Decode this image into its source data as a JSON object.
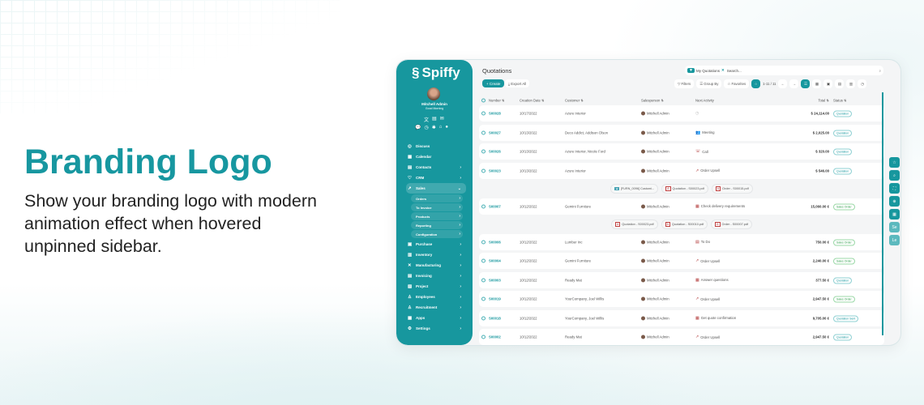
{
  "hero": {
    "title": "Branding Logo",
    "description": "Show your branding logo with modern animation effect when hovered unpinned sidebar."
  },
  "colors": {
    "accent": "#17979e",
    "sales_order": "#2f9e4b"
  },
  "sidebar": {
    "logo": "Spiffy",
    "user": {
      "name": "Mitchell Admin",
      "greeting": "Good Morning"
    },
    "items": [
      {
        "label": "Discuss",
        "icon": "chat-icon"
      },
      {
        "label": "Calendar",
        "icon": "calendar-icon"
      },
      {
        "label": "Contacts",
        "icon": "contacts-icon",
        "chevron": true
      },
      {
        "label": "CRM",
        "icon": "crm-icon",
        "chevron": true
      },
      {
        "label": "Sales",
        "icon": "sales-icon",
        "chevron": true,
        "active": true
      },
      {
        "label": "Orders",
        "sub": true
      },
      {
        "label": "To Invoice",
        "sub": true
      },
      {
        "label": "Products",
        "sub": true
      },
      {
        "label": "Reporting",
        "sub": true
      },
      {
        "label": "Configuration",
        "sub": true
      },
      {
        "label": "Purchase",
        "icon": "purchase-icon",
        "chevron": true
      },
      {
        "label": "Inventory",
        "icon": "inventory-icon",
        "chevron": true
      },
      {
        "label": "Manufacturing",
        "icon": "manufacturing-icon",
        "chevron": true
      },
      {
        "label": "Invoicing",
        "icon": "invoicing-icon",
        "chevron": true
      },
      {
        "label": "Project",
        "icon": "project-icon",
        "chevron": true
      },
      {
        "label": "Employees",
        "icon": "employees-icon",
        "chevron": true
      },
      {
        "label": "Recruitment",
        "icon": "recruitment-icon",
        "chevron": true
      },
      {
        "label": "Apps",
        "icon": "apps-icon",
        "chevron": true
      },
      {
        "label": "Settings",
        "icon": "settings-icon",
        "chevron": true
      }
    ]
  },
  "page": {
    "title": "Quotations",
    "create": "+ Create",
    "export": "Export All",
    "search": {
      "facet": "My Quotations",
      "placeholder": "Search..."
    },
    "filters": "Filters",
    "group_by": "Group By",
    "favorites": "Favorites",
    "pager": "1-11 / 11"
  },
  "table": {
    "headers": {
      "number": "Number ⇅",
      "date": "Creation Date ⇅",
      "customer": "Customer ⇅",
      "salesperson": "Salesperson ⇅",
      "activity": "Next Activity",
      "total": "Total ⇅",
      "status": "Status ⇅"
    },
    "rows": [
      {
        "type": "row",
        "number": "S00028",
        "date": "10/17/2022",
        "customer": "Azure Interior",
        "salesperson": "Mitchell Admin",
        "activity": "",
        "activity_icon": "clock-icon",
        "total": "$ 24,114.00",
        "status": "Quotation"
      },
      {
        "type": "row",
        "number": "S00027",
        "date": "10/13/2022",
        "customer": "Deco Addict, Addison Olson",
        "salesperson": "Mitchell Admin",
        "activity": "Meeting",
        "activity_icon": "meeting-icon",
        "total": "$ 2,025.00",
        "status": "Quotation"
      },
      {
        "type": "row",
        "number": "S00026",
        "date": "10/13/2022",
        "customer": "Azure Interior, Nicole Ford",
        "salesperson": "Mitchell Admin",
        "activity": "Call",
        "activity_icon": "phone-icon",
        "total": "$ 320.00",
        "status": "Quotation"
      },
      {
        "type": "row",
        "number": "S00023",
        "date": "10/13/2022",
        "customer": "Azure Interior",
        "salesperson": "Mitchell Admin",
        "activity": "Order Upsell",
        "activity_icon": "chart-icon",
        "total": "$ 546.00",
        "status": "Quotation"
      },
      {
        "type": "attachments",
        "files": [
          {
            "name": "[FURN_0096] Customi...",
            "kind": "image"
          },
          {
            "name": "Quotation - S00023.pdf",
            "kind": "pdf"
          },
          {
            "name": "Order - S00015.pdf",
            "kind": "pdf"
          }
        ]
      },
      {
        "type": "row",
        "number": "S00007",
        "date": "10/12/2022",
        "customer": "Gemini Furniture",
        "salesperson": "Mitchell Admin",
        "activity": "Check delivery requirements",
        "activity_icon": "calendar-icon",
        "total": "15,060.00 €",
        "status": "Sales Order"
      },
      {
        "type": "attachments",
        "files": [
          {
            "name": "Quotation - S00023.pdf",
            "kind": "pdf"
          },
          {
            "name": "Quotation - S00010.pdf",
            "kind": "pdf"
          },
          {
            "name": "Order - S00007.pdf",
            "kind": "pdf"
          }
        ]
      },
      {
        "type": "row",
        "number": "S00006",
        "date": "10/12/2022",
        "customer": "Lumber Inc",
        "salesperson": "Mitchell Admin",
        "activity": "To Do",
        "activity_icon": "todo-icon",
        "total": "750.00 €",
        "status": "Sales Order"
      },
      {
        "type": "row",
        "number": "S00004",
        "date": "10/12/2022",
        "customer": "Gemini Furniture",
        "salesperson": "Mitchell Admin",
        "activity": "Order Upsell",
        "activity_icon": "chart-icon",
        "total": "2,240.00 €",
        "status": "Sales Order"
      },
      {
        "type": "row",
        "number": "S00003",
        "date": "10/12/2022",
        "customer": "Ready Mat",
        "salesperson": "Mitchell Admin",
        "activity": "Answer questions",
        "activity_icon": "calendar-icon",
        "total": "377.50 €",
        "status": "Quotation"
      },
      {
        "type": "row",
        "number": "S00019",
        "date": "10/12/2022",
        "customer": "YourCompany, Joel Willis",
        "salesperson": "Mitchell Admin",
        "activity": "Order Upsell",
        "activity_icon": "chart-icon",
        "total": "2,947.50 €",
        "status": "Sales Order"
      },
      {
        "type": "row",
        "number": "S00018",
        "date": "10/12/2022",
        "customer": "YourCompany, Joel Willis",
        "salesperson": "Mitchell Admin",
        "activity": "Get quote confirmation",
        "activity_icon": "calendar-icon",
        "total": "9,705.00 €",
        "status": "Quotation Sent"
      },
      {
        "type": "row",
        "number": "S00002",
        "date": "10/12/2022",
        "customer": "Ready Mat",
        "salesperson": "Mitchell Admin",
        "activity": "Order Upsell",
        "activity_icon": "chart-icon",
        "total": "2,947.50 €",
        "status": "Quotation"
      }
    ]
  },
  "float_buttons": [
    {
      "icon": "star-icon",
      "glyph": "☆"
    },
    {
      "icon": "search-icon",
      "glyph": "⌕"
    },
    {
      "icon": "fullscreen-icon",
      "glyph": "⛶"
    },
    {
      "icon": "zoom-icon",
      "glyph": "⊕"
    },
    {
      "icon": "grid-icon",
      "glyph": "▦"
    },
    {
      "label": "Se"
    },
    {
      "label": "Le"
    }
  ]
}
